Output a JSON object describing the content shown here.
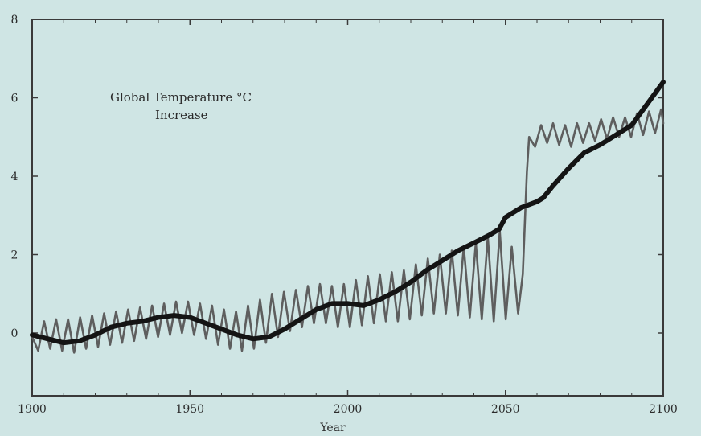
{
  "chart_data": {
    "type": "line",
    "title": "",
    "annotation": [
      "Global Temperature °C",
      "Increase"
    ],
    "xlabel": "Year",
    "ylabel": "",
    "xlim": [
      1900,
      2100
    ],
    "ylim": [
      -1.6,
      8
    ],
    "x_ticks": [
      1900,
      1950,
      2000,
      2050,
      2100
    ],
    "y_ticks": [
      0,
      2,
      4,
      6,
      8
    ],
    "grid": false,
    "legend": "none",
    "series": [
      {
        "style": "thick-dark",
        "color": "#141414",
        "points": [
          [
            1900,
            -0.05
          ],
          [
            1905,
            -0.15
          ],
          [
            1910,
            -0.25
          ],
          [
            1915,
            -0.2
          ],
          [
            1920,
            -0.05
          ],
          [
            1925,
            0.15
          ],
          [
            1930,
            0.25
          ],
          [
            1935,
            0.3
          ],
          [
            1940,
            0.4
          ],
          [
            1945,
            0.45
          ],
          [
            1950,
            0.4
          ],
          [
            1955,
            0.25
          ],
          [
            1960,
            0.1
          ],
          [
            1965,
            -0.05
          ],
          [
            1970,
            -0.15
          ],
          [
            1975,
            -0.1
          ],
          [
            1980,
            0.1
          ],
          [
            1985,
            0.35
          ],
          [
            1990,
            0.6
          ],
          [
            1995,
            0.75
          ],
          [
            2000,
            0.75
          ],
          [
            2005,
            0.7
          ],
          [
            2010,
            0.85
          ],
          [
            2015,
            1.05
          ],
          [
            2020,
            1.3
          ],
          [
            2025,
            1.6
          ],
          [
            2030,
            1.85
          ],
          [
            2035,
            2.1
          ],
          [
            2040,
            2.3
          ],
          [
            2045,
            2.5
          ],
          [
            2048,
            2.65
          ],
          [
            2050,
            2.95
          ],
          [
            2055,
            3.2
          ],
          [
            2060,
            3.35
          ],
          [
            2062,
            3.45
          ],
          [
            2065,
            3.75
          ],
          [
            2070,
            4.2
          ],
          [
            2075,
            4.6
          ],
          [
            2080,
            4.8
          ],
          [
            2085,
            5.05
          ],
          [
            2090,
            5.3
          ],
          [
            2095,
            5.85
          ],
          [
            2100,
            6.4
          ]
        ]
      },
      {
        "style": "oscillating-gray",
        "color": "#5e5e5e",
        "points": [
          [
            1900,
            -0.1
          ],
          [
            1901.9,
            -0.45
          ],
          [
            1903.8,
            0.3
          ],
          [
            1905.7,
            -0.4
          ],
          [
            1907.6,
            0.35
          ],
          [
            1909.5,
            -0.45
          ],
          [
            1911.4,
            0.35
          ],
          [
            1913.3,
            -0.5
          ],
          [
            1915.2,
            0.4
          ],
          [
            1917.1,
            -0.4
          ],
          [
            1919,
            0.45
          ],
          [
            1920.9,
            -0.35
          ],
          [
            1922.8,
            0.5
          ],
          [
            1924.7,
            -0.3
          ],
          [
            1926.6,
            0.55
          ],
          [
            1928.5,
            -0.25
          ],
          [
            1930.4,
            0.6
          ],
          [
            1932.3,
            -0.2
          ],
          [
            1934.2,
            0.65
          ],
          [
            1936.1,
            -0.15
          ],
          [
            1938,
            0.7
          ],
          [
            1939.9,
            -0.1
          ],
          [
            1941.8,
            0.75
          ],
          [
            1943.7,
            -0.05
          ],
          [
            1945.6,
            0.8
          ],
          [
            1947.5,
            0
          ],
          [
            1949.4,
            0.8
          ],
          [
            1951.3,
            -0.05
          ],
          [
            1953.2,
            0.75
          ],
          [
            1955.1,
            -0.15
          ],
          [
            1957,
            0.7
          ],
          [
            1958.9,
            -0.3
          ],
          [
            1960.8,
            0.6
          ],
          [
            1962.7,
            -0.4
          ],
          [
            1964.6,
            0.55
          ],
          [
            1966.5,
            -0.45
          ],
          [
            1968.4,
            0.7
          ],
          [
            1970.3,
            -0.4
          ],
          [
            1972.2,
            0.85
          ],
          [
            1974.1,
            -0.25
          ],
          [
            1976,
            1.0
          ],
          [
            1977.9,
            -0.1
          ],
          [
            1979.8,
            1.05
          ],
          [
            1981.7,
            0.05
          ],
          [
            1983.6,
            1.1
          ],
          [
            1985.5,
            0.15
          ],
          [
            1987.4,
            1.2
          ],
          [
            1989.3,
            0.25
          ],
          [
            1991.2,
            1.25
          ],
          [
            1993.1,
            0.25
          ],
          [
            1995,
            1.2
          ],
          [
            1996.9,
            0.15
          ],
          [
            1998.8,
            1.25
          ],
          [
            2000.7,
            0.15
          ],
          [
            2002.6,
            1.35
          ],
          [
            2004.5,
            0.2
          ],
          [
            2006.4,
            1.45
          ],
          [
            2008.3,
            0.25
          ],
          [
            2010.2,
            1.5
          ],
          [
            2012.1,
            0.3
          ],
          [
            2014,
            1.55
          ],
          [
            2015.9,
            0.3
          ],
          [
            2017.8,
            1.6
          ],
          [
            2019.7,
            0.35
          ],
          [
            2021.6,
            1.75
          ],
          [
            2023.5,
            0.45
          ],
          [
            2025.4,
            1.9
          ],
          [
            2027.3,
            0.5
          ],
          [
            2029.2,
            2.0
          ],
          [
            2031.1,
            0.5
          ],
          [
            2033,
            2.1
          ],
          [
            2034.9,
            0.45
          ],
          [
            2036.8,
            2.2
          ],
          [
            2038.7,
            0.4
          ],
          [
            2040.6,
            2.3
          ],
          [
            2042.5,
            0.35
          ],
          [
            2044.4,
            2.45
          ],
          [
            2046.3,
            0.3
          ],
          [
            2048.2,
            2.6
          ],
          [
            2050.1,
            0.35
          ],
          [
            2052,
            2.2
          ],
          [
            2054,
            0.5
          ],
          [
            2055.5,
            1.5
          ],
          [
            2056.8,
            4.1
          ],
          [
            2057.5,
            5.0
          ],
          [
            2059.4,
            4.75
          ],
          [
            2061.3,
            5.3
          ],
          [
            2063.2,
            4.85
          ],
          [
            2065.1,
            5.35
          ],
          [
            2067,
            4.8
          ],
          [
            2068.9,
            5.3
          ],
          [
            2070.8,
            4.75
          ],
          [
            2072.7,
            5.35
          ],
          [
            2074.6,
            4.85
          ],
          [
            2076.5,
            5.35
          ],
          [
            2078.4,
            4.9
          ],
          [
            2080.3,
            5.45
          ],
          [
            2082.2,
            4.95
          ],
          [
            2084.1,
            5.5
          ],
          [
            2086,
            5.0
          ],
          [
            2087.9,
            5.5
          ],
          [
            2089.8,
            5.0
          ],
          [
            2091.7,
            5.6
          ],
          [
            2093.6,
            5.05
          ],
          [
            2095.5,
            5.65
          ],
          [
            2097.4,
            5.1
          ],
          [
            2099.3,
            5.7
          ],
          [
            2100,
            5.35
          ]
        ]
      }
    ]
  }
}
